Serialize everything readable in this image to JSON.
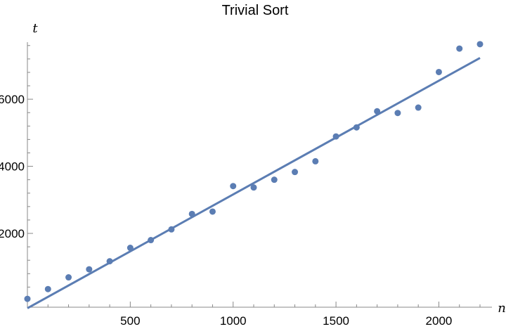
{
  "chart_data": {
    "type": "scatter",
    "title": "Trivial Sort",
    "xlabel": "n",
    "ylabel": "t",
    "xlim": [
      0,
      2250
    ],
    "ylim": [
      -200,
      7700
    ],
    "x_ticks": [
      500,
      1000,
      1500,
      2000
    ],
    "y_ticks": [
      2000,
      4000,
      6000
    ],
    "series": [
      {
        "x": [
          0,
          100,
          200,
          300,
          400,
          500,
          600,
          700,
          800,
          900,
          1000,
          1100,
          1200,
          1300,
          1400,
          1500,
          1600,
          1700,
          1800,
          1900,
          2000,
          2100,
          2200
        ],
        "y": [
          50,
          340,
          690,
          930,
          1170,
          1570,
          1800,
          2120,
          2580,
          2650,
          3410,
          3370,
          3600,
          3830,
          4150,
          4890,
          5160,
          5640,
          5590,
          5750,
          6810,
          7510,
          7640
        ]
      }
    ],
    "fit_line": {
      "x": [
        0,
        2200
      ],
      "y": [
        -230,
        7230
      ]
    },
    "colors": {
      "series": "#5b7db3"
    },
    "grid": false
  }
}
